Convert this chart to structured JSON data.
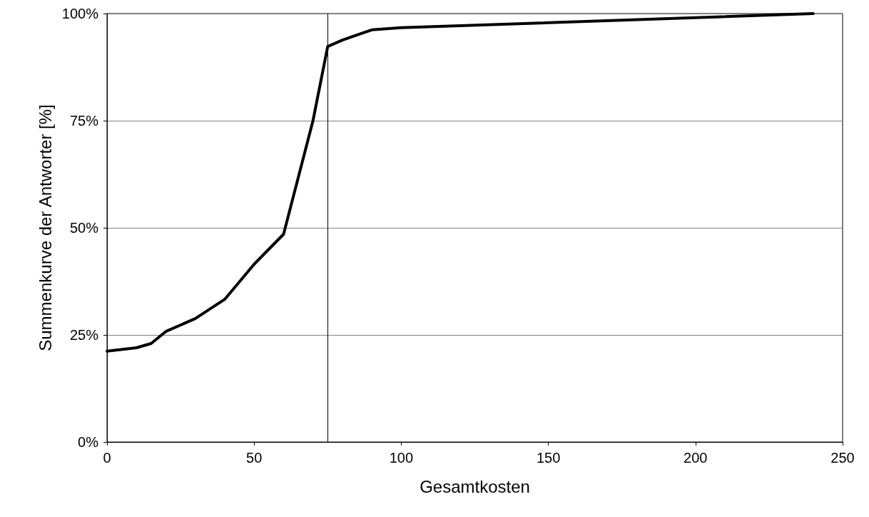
{
  "chart_data": {
    "type": "line",
    "xlabel": "Gesamtkosten",
    "ylabel": "Summenkurve der Antworter [%]",
    "x": [
      0,
      10,
      15,
      20,
      30,
      40,
      50,
      60,
      70,
      75,
      80,
      90,
      100,
      240
    ],
    "series": [
      {
        "color": "#000000",
        "values": [
          21.2,
          22,
          23,
          25.8,
          28.8,
          33.3,
          41.5,
          48.5,
          75,
          92.3,
          93.8,
          96.2,
          96.7,
          100
        ]
      }
    ],
    "xlim": [
      0,
      250
    ],
    "xticks": [
      0,
      50,
      100,
      150,
      200,
      250
    ],
    "ylim": [
      0,
      100
    ],
    "yticks": [
      {
        "value": 0,
        "label": "0%"
      },
      {
        "value": 25,
        "label": "25%"
      },
      {
        "value": 50,
        "label": "50%"
      },
      {
        "value": 75,
        "label": "75%"
      },
      {
        "value": 100,
        "label": "100%"
      }
    ],
    "grid": "y",
    "marker": "none",
    "line_style": "solid",
    "ref_lines": [
      {
        "axis": "x",
        "value": 75,
        "color": "#000000"
      }
    ]
  }
}
